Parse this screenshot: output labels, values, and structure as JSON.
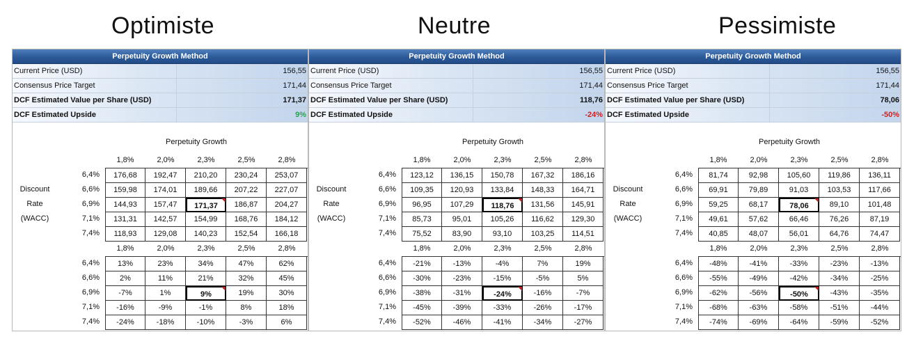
{
  "panels": [
    {
      "title": "Optimiste",
      "header": "Perpetuity Growth Method",
      "rows": [
        {
          "label": "Current Price (USD)",
          "value": "156,55"
        },
        {
          "label": "Consensus Price Target",
          "value": "171,44"
        },
        {
          "label": "DCF Estimated Value per Share (USD)",
          "value": "171,37"
        },
        {
          "label": "DCF Estimated Upside",
          "value": "9%"
        }
      ],
      "upside_color": "#2aa24a",
      "value_table": [
        [
          "176,68",
          "192,47",
          "210,20",
          "230,24",
          "253,07"
        ],
        [
          "159,98",
          "174,01",
          "189,66",
          "207,22",
          "227,07"
        ],
        [
          "144,93",
          "157,47",
          "171,37",
          "186,87",
          "204,27"
        ],
        [
          "131,31",
          "142,57",
          "154,99",
          "168,76",
          "184,12"
        ],
        [
          "118,93",
          "129,08",
          "140,23",
          "152,54",
          "166,18"
        ]
      ],
      "upside_table": [
        [
          "13%",
          "23%",
          "34%",
          "47%",
          "62%"
        ],
        [
          "2%",
          "11%",
          "21%",
          "32%",
          "45%"
        ],
        [
          "-7%",
          "1%",
          "9%",
          "19%",
          "30%"
        ],
        [
          "-16%",
          "-9%",
          "-1%",
          "8%",
          "18%"
        ],
        [
          "-24%",
          "-18%",
          "-10%",
          "-3%",
          "6%"
        ]
      ]
    },
    {
      "title": "Neutre",
      "header": "Perpetuity Growth Method",
      "rows": [
        {
          "label": "Current Price (USD)",
          "value": "156,55"
        },
        {
          "label": "Consensus Price Target",
          "value": "171,44"
        },
        {
          "label": "DCF Estimated Value per Share (USD)",
          "value": "118,76"
        },
        {
          "label": "DCF Estimated Upside",
          "value": "-24%"
        }
      ],
      "upside_color": "#d12020",
      "value_table": [
        [
          "123,12",
          "136,15",
          "150,78",
          "167,32",
          "186,16"
        ],
        [
          "109,35",
          "120,93",
          "133,84",
          "148,33",
          "164,71"
        ],
        [
          "96,95",
          "107,29",
          "118,76",
          "131,56",
          "145,91"
        ],
        [
          "85,73",
          "95,01",
          "105,26",
          "116,62",
          "129,30"
        ],
        [
          "75,52",
          "83,90",
          "93,10",
          "103,25",
          "114,51"
        ]
      ],
      "upside_table": [
        [
          "-21%",
          "-13%",
          "-4%",
          "7%",
          "19%"
        ],
        [
          "-30%",
          "-23%",
          "-15%",
          "-5%",
          "5%"
        ],
        [
          "-38%",
          "-31%",
          "-24%",
          "-16%",
          "-7%"
        ],
        [
          "-45%",
          "-39%",
          "-33%",
          "-26%",
          "-17%"
        ],
        [
          "-52%",
          "-46%",
          "-41%",
          "-34%",
          "-27%"
        ]
      ]
    },
    {
      "title": "Pessimiste",
      "header": "Perpetuity Growth Method",
      "rows": [
        {
          "label": "Current Price (USD)",
          "value": "156,55"
        },
        {
          "label": "Consensus Price Target",
          "value": "171,44"
        },
        {
          "label": "DCF Estimated Value per Share (USD)",
          "value": "78,06"
        },
        {
          "label": "DCF Estimated Upside",
          "value": "-50%"
        }
      ],
      "upside_color": "#d12020",
      "value_table": [
        [
          "81,74",
          "92,98",
          "105,60",
          "119,86",
          "136,11"
        ],
        [
          "69,91",
          "79,89",
          "91,03",
          "103,53",
          "117,66"
        ],
        [
          "59,25",
          "68,17",
          "78,06",
          "89,10",
          "101,48"
        ],
        [
          "49,61",
          "57,62",
          "66,46",
          "76,26",
          "87,19"
        ],
        [
          "40,85",
          "48,07",
          "56,01",
          "64,76",
          "74,47"
        ]
      ],
      "upside_table": [
        [
          "-48%",
          "-41%",
          "-33%",
          "-23%",
          "-13%"
        ],
        [
          "-55%",
          "-49%",
          "-42%",
          "-34%",
          "-25%"
        ],
        [
          "-62%",
          "-56%",
          "-50%",
          "-43%",
          "-35%"
        ],
        [
          "-68%",
          "-63%",
          "-58%",
          "-51%",
          "-44%"
        ],
        [
          "-74%",
          "-69%",
          "-64%",
          "-59%",
          "-52%"
        ]
      ]
    }
  ],
  "sensitivity": {
    "column_title": "Perpetuity Growth",
    "growth_rates": [
      "1,8%",
      "2,0%",
      "2,3%",
      "2,5%",
      "2,8%"
    ],
    "wacc_rates": [
      "6,4%",
      "6,6%",
      "6,9%",
      "7,1%",
      "7,4%"
    ],
    "row_axis_label": [
      "Discount",
      "Rate",
      "(WACC)"
    ]
  }
}
